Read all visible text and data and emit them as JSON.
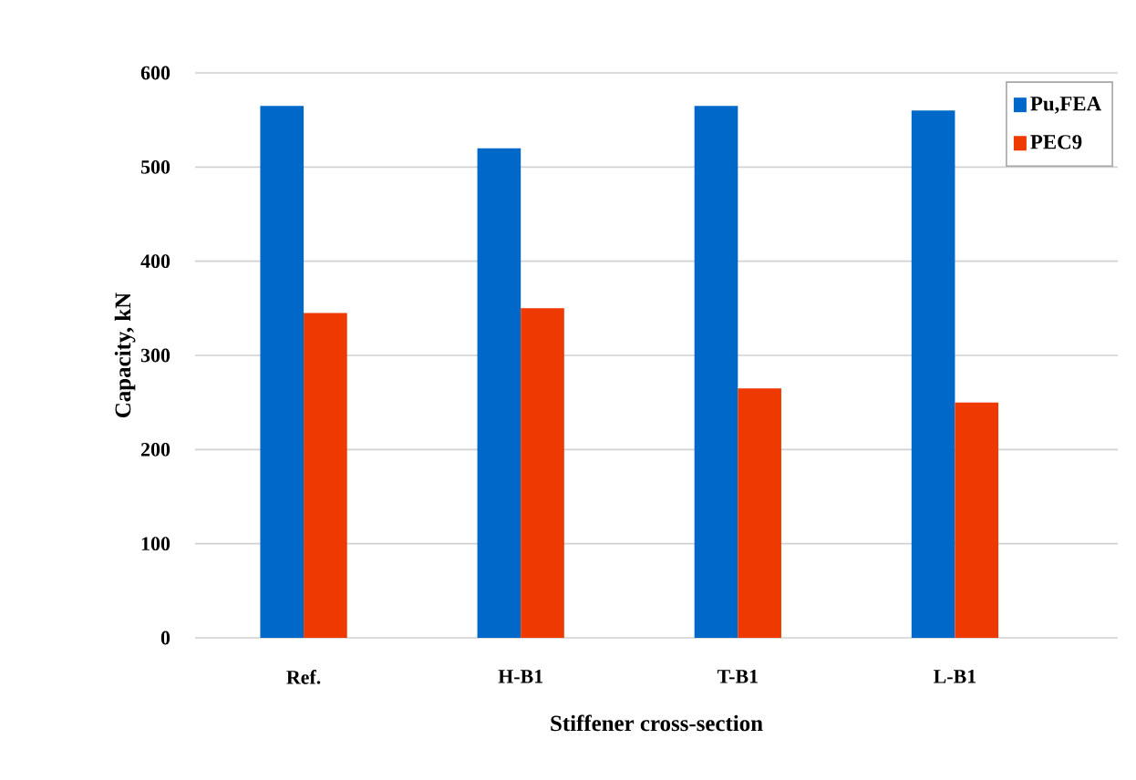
{
  "chart_data": {
    "type": "bar",
    "xlabel": "Stiffener cross-section",
    "ylabel": "Capacity, kN",
    "categories": [
      "Ref.",
      "H-B1",
      "T-B1",
      "L-B1"
    ],
    "series": [
      {
        "name": "Pu,FEA",
        "color": "#0068c9",
        "values": [
          565,
          520,
          565,
          560
        ]
      },
      {
        "name": "PEC9",
        "color": "#ee3a00",
        "values": [
          345,
          350,
          265,
          250
        ]
      }
    ],
    "ylim": [
      0,
      600
    ],
    "yticks": [
      0,
      100,
      200,
      300,
      400,
      500,
      600
    ],
    "grid": "y",
    "legend": "top right"
  }
}
